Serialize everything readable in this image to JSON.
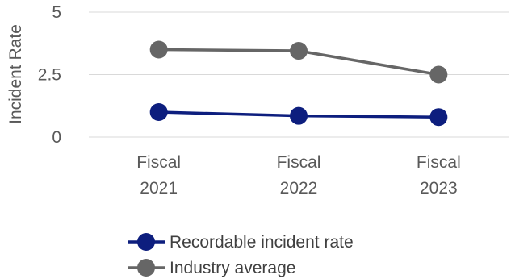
{
  "chart_data": {
    "type": "line",
    "title": "",
    "xlabel": "",
    "ylabel": "Incident Rate",
    "ylim": [
      0,
      5
    ],
    "yticks": [
      "0",
      "2.5",
      "5"
    ],
    "grid": true,
    "legend_position": "bottom",
    "categories": [
      [
        "Fiscal",
        "2021"
      ],
      [
        "Fiscal",
        "2022"
      ],
      [
        "Fiscal",
        "2023"
      ]
    ],
    "series": [
      {
        "name": "Recordable incident rate",
        "color": "#0D1E7E",
        "values": [
          1.0,
          0.85,
          0.8
        ]
      },
      {
        "name": "Industry average",
        "color": "#666666",
        "values": [
          3.5,
          3.45,
          2.5
        ]
      }
    ]
  }
}
